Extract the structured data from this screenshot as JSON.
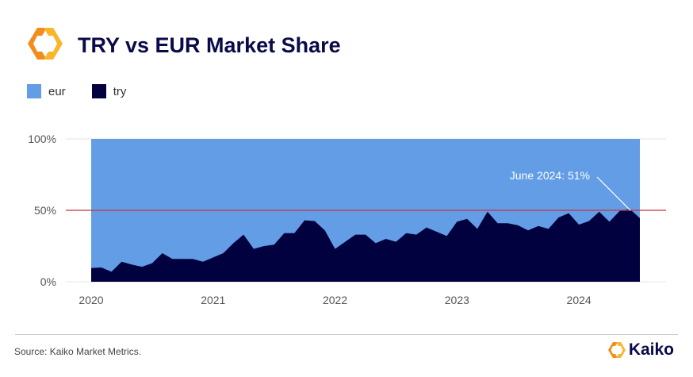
{
  "header": {
    "title": "TRY vs EUR Market Share"
  },
  "footer": {
    "source": "Source: Kaiko Market Metrics.",
    "brand": "Kaiko"
  },
  "colors": {
    "eur": "#629de6",
    "try": "#02013f",
    "reference_line": "#c8323c",
    "title": "#0a0a4a",
    "logo_orange": "#f7a823"
  },
  "chart_data": {
    "type": "area",
    "stacked": true,
    "normalized": true,
    "title": "TRY vs EUR Market Share",
    "xlabel": "",
    "ylabel": "",
    "ylim": [
      0,
      100
    ],
    "y_ticks": [
      "0%",
      "50%",
      "100%"
    ],
    "x_ticks": [
      "2020",
      "2021",
      "2022",
      "2023",
      "2024"
    ],
    "x_start": "2020-01",
    "x_end": "2024-07",
    "x_frequency": "monthly",
    "legend": {
      "position": "top-left",
      "entries": [
        "eur",
        "try"
      ]
    },
    "grid": true,
    "reference_line": {
      "y": 50
    },
    "annotation": {
      "text": "June 2024: 51%",
      "x": "2024-06",
      "y": 51
    },
    "series": [
      {
        "name": "eur",
        "values": "remainder to 100%"
      },
      {
        "name": "try",
        "values": [
          9.6,
          10,
          7,
          14,
          12,
          10.5,
          13,
          20,
          16,
          16,
          16,
          14,
          17,
          20,
          27,
          33,
          23,
          25,
          26,
          34,
          34,
          43,
          42.5,
          36,
          23,
          28,
          33,
          33,
          27,
          30,
          28,
          34,
          33,
          38,
          35,
          32,
          42,
          44,
          37,
          49,
          41,
          41,
          39.5,
          36,
          39,
          37,
          45,
          48,
          40,
          42.5,
          49,
          42,
          49.5,
          51,
          44.5
        ]
      }
    ]
  }
}
